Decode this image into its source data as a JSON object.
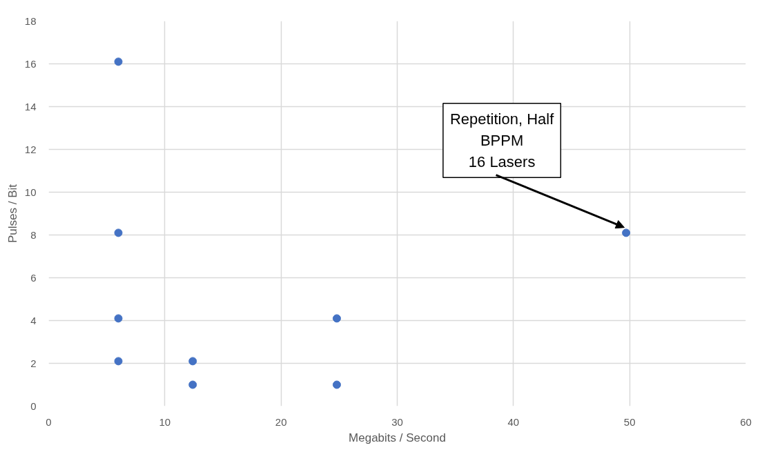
{
  "chart_data": {
    "type": "scatter",
    "xlabel": "Megabits / Second",
    "ylabel": "Pulses / Bit",
    "x": [
      6,
      6,
      6,
      6,
      12.4,
      12.4,
      24.8,
      24.8,
      49.7
    ],
    "series": [
      {
        "color": "#4472c4",
        "values": [
          16.1,
          8.1,
          4.1,
          2.1,
          2.1,
          1.0,
          4.1,
          1.0,
          8.1
        ]
      }
    ],
    "xlim": [
      0,
      60
    ],
    "xticks": [
      0,
      10,
      20,
      30,
      40,
      50,
      60
    ],
    "ylim": [
      0,
      18
    ],
    "yticks": [
      0,
      2,
      4,
      6,
      8,
      10,
      12,
      14,
      16,
      18
    ],
    "grid": true,
    "marker": "circle",
    "annotations": [
      {
        "text": "Repetition, Half\nBPPM\n16 Lasers",
        "x": 49.7,
        "y": 8.1
      }
    ]
  }
}
